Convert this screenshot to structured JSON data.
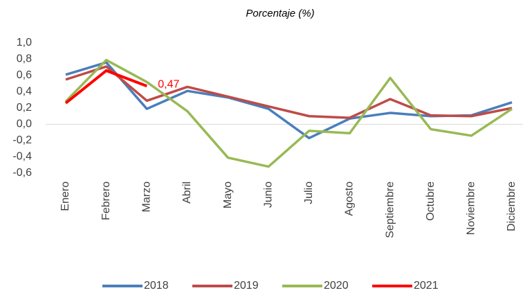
{
  "chart_data": {
    "type": "line",
    "title": "Porcentaje (%)",
    "categories": [
      "Enero",
      "Febrero",
      "Marzo",
      "Abril",
      "Mayo",
      "Junio",
      "Julio",
      "Agosto",
      "Septiembre",
      "Octubre",
      "Noviembre",
      "Diciembre"
    ],
    "series": [
      {
        "name": "2018",
        "color": "#4a7ebb",
        "values": [
          0.61,
          0.76,
          0.19,
          0.41,
          0.33,
          0.19,
          -0.17,
          0.07,
          0.14,
          0.1,
          0.11,
          0.27
        ]
      },
      {
        "name": "2019",
        "color": "#be4b48",
        "values": [
          0.55,
          0.71,
          0.29,
          0.46,
          0.34,
          0.22,
          0.1,
          0.08,
          0.31,
          0.11,
          0.1,
          0.2
        ]
      },
      {
        "name": "2020",
        "color": "#98b954",
        "values": [
          0.28,
          0.79,
          0.52,
          0.16,
          -0.41,
          -0.52,
          -0.08,
          -0.11,
          0.57,
          -0.06,
          -0.14,
          0.19
        ]
      },
      {
        "name": "2021",
        "color": "#ff0000",
        "values": [
          0.26,
          0.66,
          0.47,
          null,
          null,
          null,
          null,
          null,
          null,
          null,
          null,
          null
        ],
        "value_labels": [
          null,
          null,
          "0,47",
          null,
          null,
          null,
          null,
          null,
          null,
          null,
          null,
          null
        ]
      }
    ],
    "ylim": [
      -0.6,
      1.0
    ],
    "yticks": [
      {
        "value": 1.0,
        "label": "1,0"
      },
      {
        "value": 0.8,
        "label": "0,8"
      },
      {
        "value": 0.6,
        "label": "0,6"
      },
      {
        "value": 0.4,
        "label": "0,4"
      },
      {
        "value": 0.2,
        "label": "0,2"
      },
      {
        "value": 0.0,
        "label": "0,0"
      },
      {
        "value": -0.2,
        "label": "-0,2"
      },
      {
        "value": -0.4,
        "label": "-0,4"
      },
      {
        "value": -0.6,
        "label": "-0,6"
      }
    ],
    "grid": false,
    "legend": "bottom"
  }
}
